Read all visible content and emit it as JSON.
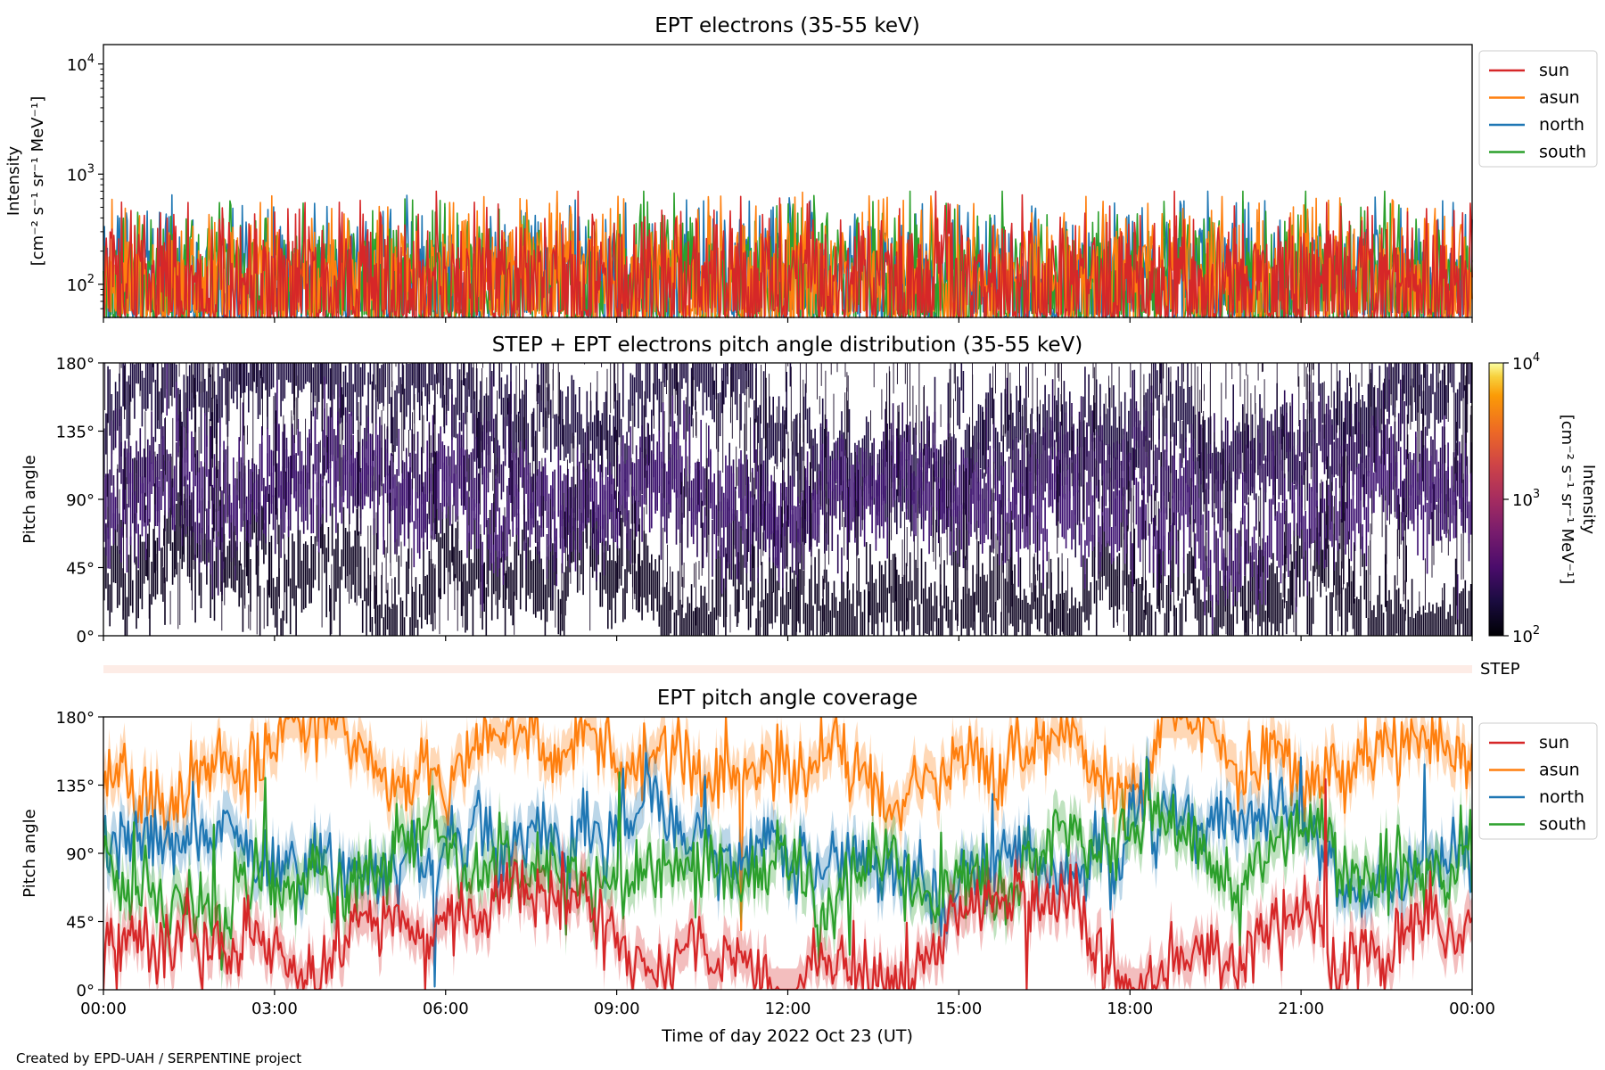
{
  "figure": {
    "credit": "Created by EPD-UAH / SERPENTINE project",
    "xlabel": "Time of day 2022 Oct 23 (UT)",
    "x_ticks": [
      "00:00",
      "03:00",
      "06:00",
      "09:00",
      "12:00",
      "15:00",
      "18:00",
      "21:00",
      "00:00"
    ],
    "x_range_hours": [
      0,
      24
    ]
  },
  "chart_data": [
    {
      "type": "line",
      "title": "EPT electrons (35-55 keV)",
      "ylabel": "Intensity",
      "ylabel_units": "[cm⁻² s⁻¹ sr⁻¹ MeV⁻¹]",
      "yscale": "log",
      "ylim": [
        50,
        15000
      ],
      "y_ticks": [
        {
          "base": "10",
          "exp": "2",
          "value": 100
        },
        {
          "base": "10",
          "exp": "3",
          "value": 1000
        },
        {
          "base": "10",
          "exp": "4",
          "value": 10000
        }
      ],
      "legend_position": "right, outside plot, top",
      "series": [
        {
          "name": "sun",
          "color": "#d62728",
          "baseline": 150,
          "peak_typical": 280
        },
        {
          "name": "asun",
          "color": "#ff7f0e",
          "baseline": 160,
          "peak_typical": 320
        },
        {
          "name": "north",
          "color": "#1f77b4",
          "baseline": 155,
          "peak_typical": 300
        },
        {
          "name": "south",
          "color": "#2ca02c",
          "baseline": 155,
          "peak_typical": 300
        }
      ],
      "draw_order": [
        "north",
        "south",
        "asun",
        "sun"
      ],
      "notes": "noisy 1-minute intensity, mostly between 50 and 400"
    },
    {
      "type": "heatmap",
      "title": "STEP + EPT electrons pitch angle distribution (35-55 keV)",
      "ylabel": "Pitch angle",
      "ylim": [
        0,
        180
      ],
      "y_ticks": [
        "0°",
        "45°",
        "90°",
        "135°",
        "180°"
      ],
      "colorbar": {
        "label": "Intensity",
        "units": "[cm⁻² s⁻¹ sr⁻¹ MeV⁻¹]",
        "scale": "log",
        "range": [
          100,
          10000
        ],
        "ticks": [
          {
            "base": "10",
            "exp": "2",
            "value": 100
          },
          {
            "base": "10",
            "exp": "3",
            "value": 1000
          },
          {
            "base": "10",
            "exp": "4",
            "value": 10000
          }
        ],
        "colormap": "inferno"
      },
      "fill_value_range": [
        100,
        250
      ],
      "notes": "dark purple stripes along the four telescope pitch-angle tracks; white where no data"
    },
    {
      "type": "bar",
      "title": "",
      "label": "STEP",
      "color": "#fdece6",
      "notes": "thin STEP intensity strip, uniformly faint"
    },
    {
      "type": "line",
      "title": "EPT pitch angle coverage",
      "ylabel": "Pitch angle",
      "ylim": [
        0,
        180
      ],
      "y_ticks": [
        "0°",
        "45°",
        "90°",
        "135°",
        "180°"
      ],
      "legend_position": "right, outside plot, top",
      "series": [
        {
          "name": "sun",
          "color": "#d62728",
          "mean_deg": 32,
          "band_halfwidth_deg": 14
        },
        {
          "name": "asun",
          "color": "#ff7f0e",
          "mean_deg": 148,
          "band_halfwidth_deg": 14
        },
        {
          "name": "north",
          "color": "#1f77b4",
          "mean_deg": 100,
          "band_halfwidth_deg": 14
        },
        {
          "name": "south",
          "color": "#2ca02c",
          "mean_deg": 82,
          "band_halfwidth_deg": 14
        }
      ],
      "draw_order": [
        "asun",
        "north",
        "south",
        "sun"
      ]
    }
  ]
}
